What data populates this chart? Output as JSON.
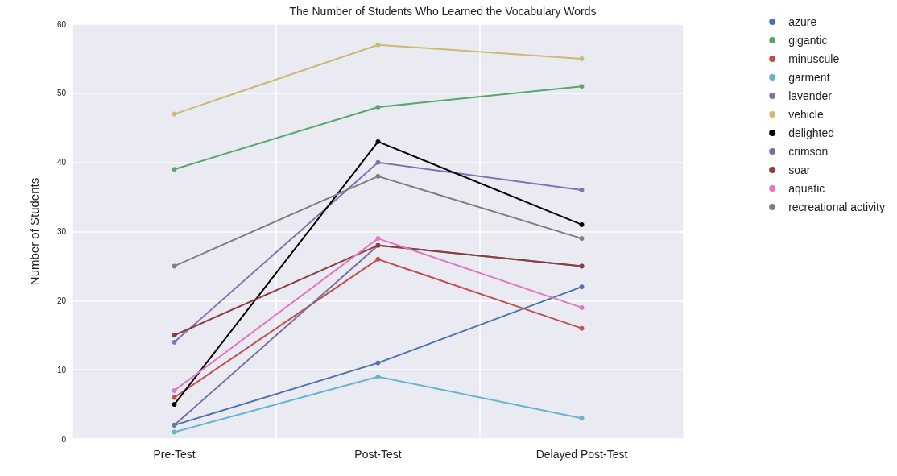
{
  "chart_data": {
    "type": "line",
    "title": "The Number of Students Who Learned the Vocabulary Words",
    "ylabel": "Number of Students",
    "categories": [
      "Pre-Test",
      "Post-Test",
      "Delayed Post-Test"
    ],
    "series": [
      {
        "name": "azure",
        "color": "#4c72b0",
        "values": [
          2,
          11,
          22
        ]
      },
      {
        "name": "gigantic",
        "color": "#55a868",
        "values": [
          39,
          48,
          51
        ]
      },
      {
        "name": "minuscule",
        "color": "#c44e52",
        "values": [
          6,
          26,
          16
        ]
      },
      {
        "name": "garment",
        "color": "#64b5cd",
        "values": [
          1,
          9,
          3
        ]
      },
      {
        "name": "lavender",
        "color": "#8172b2",
        "values": [
          14,
          40,
          36
        ]
      },
      {
        "name": "vehicle",
        "color": "#ccb974",
        "values": [
          47,
          57,
          55
        ]
      },
      {
        "name": "delighted",
        "color": "#000000",
        "values": [
          5,
          43,
          31
        ]
      },
      {
        "name": "crimson",
        "color": "#7a6fa0",
        "values": [
          2,
          28,
          25
        ]
      },
      {
        "name": "soar",
        "color": "#8c3d3d",
        "values": [
          15,
          28,
          25
        ]
      },
      {
        "name": "aquatic",
        "color": "#e377c2",
        "values": [
          7,
          29,
          19
        ]
      },
      {
        "name": "recreational activity",
        "color": "#7f7f7f",
        "values": [
          25,
          38,
          29
        ]
      }
    ],
    "ylim": [
      0,
      60
    ],
    "yticks": [
      0,
      10,
      20,
      30,
      40,
      50,
      60
    ],
    "grid": true,
    "legend": "right",
    "marker": "circle",
    "line_style": "solid"
  }
}
